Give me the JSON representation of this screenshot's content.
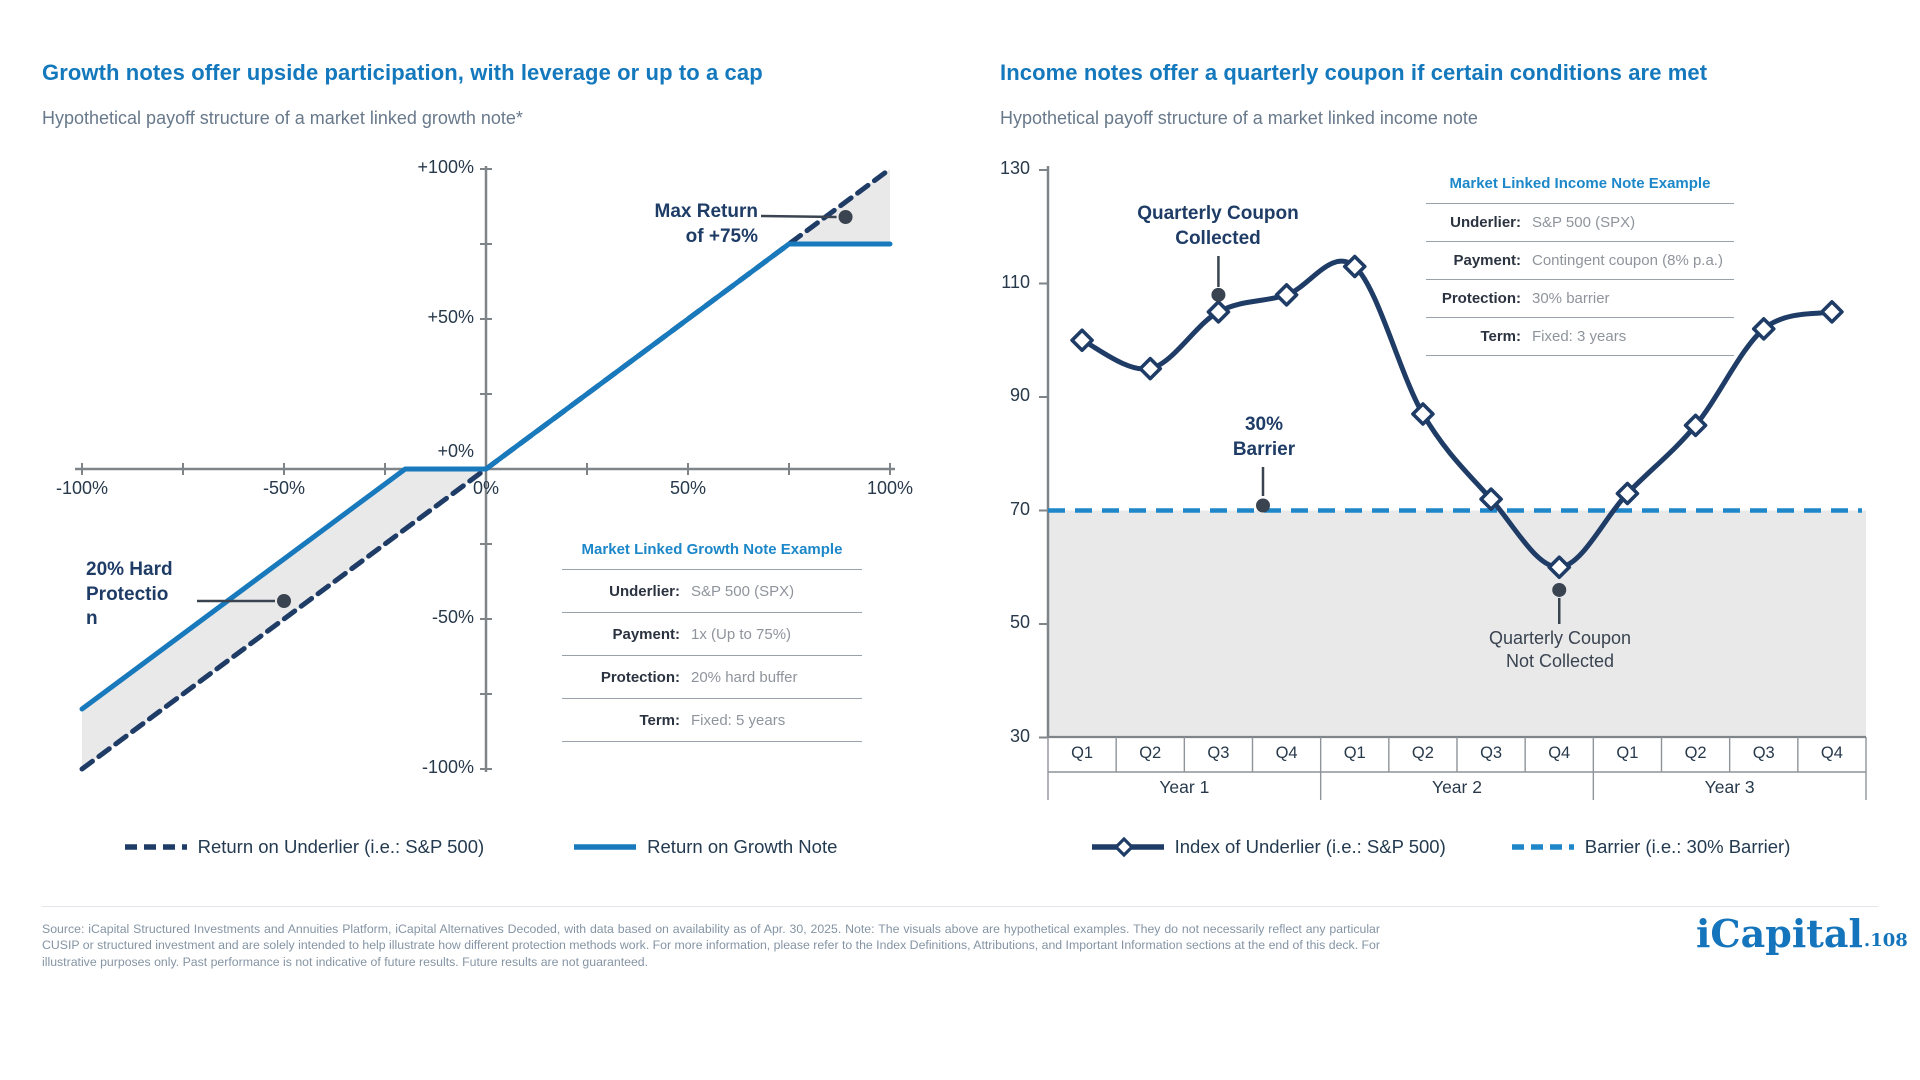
{
  "colors": {
    "title_blue": "#1478BD",
    "table_title_blue": "#1C87C9",
    "navy": "#1E3C66",
    "growth_line_blue": "#1879BC",
    "barrier_blue": "#1E87C9",
    "shade_gray": "#E9E9EA",
    "axis_gray": "#7F8489",
    "grid_gray": "#8E9499",
    "annotation_slate": "#3A4450"
  },
  "chart_data": [
    {
      "id": "growth-note-payoff",
      "type": "line",
      "title": "Growth notes offer upside participation, with leverage or up to a cap",
      "subtitle": "Hypothetical payoff structure of a market linked growth note*",
      "axes": {
        "xlim": [
          -100,
          100
        ],
        "ylim": [
          -100,
          100
        ],
        "x_ticks": [
          -100,
          -75,
          -50,
          -25,
          25,
          50,
          75,
          100
        ],
        "y_ticks": [
          100,
          75,
          50,
          25,
          -25,
          -50,
          -75,
          -100
        ],
        "x_tick_labels": [
          {
            "value": -100,
            "label": "-100%"
          },
          {
            "value": -50,
            "label": "-50%"
          },
          {
            "value": 0,
            "label": "0%"
          },
          {
            "value": 50,
            "label": "50%"
          },
          {
            "value": 100,
            "label": "100%"
          }
        ],
        "y_tick_labels": [
          {
            "value": 100,
            "label": "+100%"
          },
          {
            "value": 50,
            "label": "+50%"
          },
          {
            "value": 0,
            "label": "+0%"
          },
          {
            "value": -50,
            "label": "-50%"
          },
          {
            "value": -100,
            "label": "-100%"
          }
        ]
      },
      "series": [
        {
          "name": "Return on Underlier (i.e.: S&P 500)",
          "style": "dashed",
          "color": "#1E3C66",
          "points": [
            [
              -100,
              -100
            ],
            [
              100,
              100
            ]
          ]
        },
        {
          "name": "Return on Growth Note",
          "style": "solid",
          "color": "#1879BC",
          "points": [
            [
              -100,
              -80
            ],
            [
              -20,
              0
            ],
            [
              0,
              0
            ],
            [
              75,
              75
            ],
            [
              100,
              75
            ]
          ]
        }
      ],
      "shaded_regions": [
        {
          "name": "buffer-zone",
          "points": [
            [
              -100,
              -80
            ],
            [
              -20,
              0
            ],
            [
              0,
              0
            ],
            [
              -100,
              -100
            ]
          ]
        },
        {
          "name": "cap-zone",
          "points": [
            [
              75,
              75
            ],
            [
              100,
              100
            ],
            [
              100,
              75
            ]
          ]
        }
      ],
      "annotations": [
        {
          "id": "max-return",
          "text": "Max Return\nof +75%",
          "bold": true,
          "anchor": {
            "x": 89,
            "y": 84
          }
        },
        {
          "id": "hard-protection",
          "text": "20% Hard Protection",
          "bold": true,
          "anchor": {
            "x": -50,
            "y": -44
          }
        }
      ],
      "info_table": {
        "title": "Market Linked Growth Note Example",
        "rows": [
          {
            "label": "Underlier:",
            "value": "S&P 500 (SPX)"
          },
          {
            "label": "Payment:",
            "value": "1x (Up to 75%)"
          },
          {
            "label": "Protection:",
            "value": "20% hard buffer"
          },
          {
            "label": "Term:",
            "value": "Fixed: 5 years"
          }
        ]
      },
      "legend": [
        {
          "label": "Return on Underlier (i.e.: S&P 500)",
          "swatch": "dashed-navy"
        },
        {
          "label": "Return on Growth Note",
          "swatch": "solid-blue"
        }
      ]
    },
    {
      "id": "income-note-payoff",
      "type": "line",
      "title": "Income notes offer a quarterly coupon if certain conditions are met",
      "subtitle": "Hypothetical payoff structure of a market linked income note",
      "axes": {
        "ylim": [
          30,
          130
        ],
        "y_tick_labels": [
          {
            "value": 130,
            "label": "130"
          },
          {
            "value": 110,
            "label": "110"
          },
          {
            "value": 90,
            "label": "90"
          },
          {
            "value": 70,
            "label": "70"
          },
          {
            "value": 50,
            "label": "50"
          },
          {
            "value": 30,
            "label": "30"
          }
        ],
        "quarters": [
          "Q1",
          "Q2",
          "Q3",
          "Q4",
          "Q1",
          "Q2",
          "Q3",
          "Q4",
          "Q1",
          "Q2",
          "Q3",
          "Q4"
        ],
        "year_groups": [
          "Year 1",
          "Year 2",
          "Year 3"
        ]
      },
      "series": [
        {
          "name": "Index of Underlier (i.e.: S&P 500)",
          "color": "#1E3C66",
          "marker": "diamond",
          "values": [
            100,
            95,
            105,
            108,
            113,
            87,
            72,
            60,
            73,
            85,
            102,
            105
          ]
        },
        {
          "name": "Barrier (i.e.: 30% Barrier)",
          "style": "dashed",
          "color": "#1E87C9",
          "value": 70
        }
      ],
      "shaded_region": {
        "name": "below-barrier",
        "from": 70,
        "to": 30
      },
      "annotations": [
        {
          "id": "coupon-collected",
          "text": "Quarterly Coupon\nCollected",
          "bold": true,
          "anchor_quarter": 2,
          "anchor_value": 108
        },
        {
          "id": "barrier-label",
          "text": "30%\nBarrier",
          "bold": true,
          "anchor_value": 70
        },
        {
          "id": "coupon-not-collected",
          "text": "Quarterly Coupon\nNot Collected",
          "bold": false,
          "anchor_quarter": 7,
          "anchor_value": 56
        }
      ],
      "info_table": {
        "title": "Market Linked Income Note Example",
        "rows": [
          {
            "label": "Underlier:",
            "value": "S&P 500 (SPX)"
          },
          {
            "label": "Payment:",
            "value": "Contingent coupon (8% p.a.)"
          },
          {
            "label": "Protection:",
            "value": "30% barrier"
          },
          {
            "label": "Term:",
            "value": "Fixed: 3 years"
          }
        ]
      },
      "legend": [
        {
          "label": "Index of Underlier (i.e.: S&P 500)",
          "swatch": "diamond-line-navy"
        },
        {
          "label": "Barrier (i.e.: 30% Barrier)",
          "swatch": "dashed-lightblue"
        }
      ]
    }
  ],
  "footer": {
    "source_text": "Source: iCapital Structured Investments and Annuities Platform, iCapital Alternatives Decoded, with data based on availability as of Apr. 30, 2025. Note: The visuals above are hypothetical examples. They do not necessarily reflect any particular CUSIP or structured investment and are solely intended to help illustrate how different protection methods work. For more information, please refer to the Index Definitions, Attributions, and Important Information sections at the end of this deck. For illustrative purposes only. Past performance is not indicative of future results. Future results are not guaranteed.",
    "logo": {
      "wordmark": "iCapital",
      "page_label": ".108"
    }
  }
}
